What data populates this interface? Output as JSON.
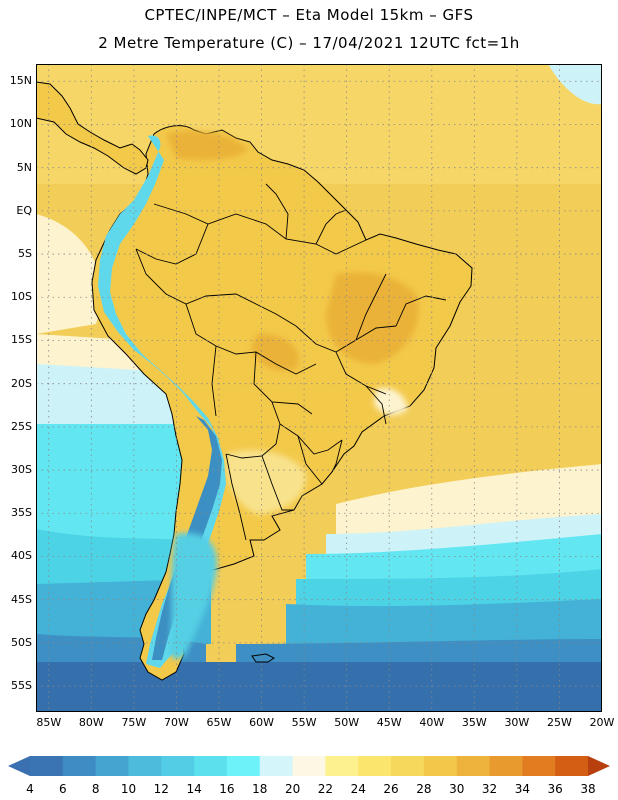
{
  "header": {
    "line1": "CPTEC/INPE/MCT –  Eta Model 15km – GFS",
    "line2": "2 Metre Temperature (C) – 17/04/2021 12UTC fct=1h"
  },
  "axes": {
    "lat_labels": [
      "15N",
      "10N",
      "5N",
      "EQ",
      "5S",
      "10S",
      "15S",
      "20S",
      "25S",
      "30S",
      "35S",
      "40S",
      "45S",
      "50S",
      "55S"
    ],
    "lat_values": [
      15,
      10,
      5,
      0,
      -5,
      -10,
      -15,
      -20,
      -25,
      -30,
      -35,
      -40,
      -45,
      -50,
      -55
    ],
    "lon_labels": [
      "85W",
      "80W",
      "75W",
      "70W",
      "65W",
      "60W",
      "55W",
      "50W",
      "45W",
      "40W",
      "35W",
      "30W",
      "25W",
      "20W"
    ],
    "lon_values": [
      -85,
      -80,
      -75,
      -70,
      -65,
      -60,
      -55,
      -50,
      -45,
      -40,
      -35,
      -30,
      -25,
      -20
    ],
    "lat_range": [
      -58,
      17
    ],
    "lon_range": [
      -86.5,
      -20
    ]
  },
  "colorbar": {
    "labels": [
      "4",
      "6",
      "8",
      "10",
      "12",
      "14",
      "16",
      "18",
      "20",
      "22",
      "24",
      "26",
      "28",
      "30",
      "32",
      "34",
      "36",
      "38"
    ],
    "low_color": "#3a6fb0",
    "high_color": "#b8400e",
    "colors": [
      "#3a74b3",
      "#3f8cc3",
      "#45a4d0",
      "#4cbbdc",
      "#53cde6",
      "#5ce0ee",
      "#6cf3fa",
      "#d4f6fb",
      "#fdf8e3",
      "#fdf18f",
      "#fbe56d",
      "#f6d85a",
      "#f2c84a",
      "#eeb33c",
      "#e99a2e",
      "#e17d20",
      "#d45f14",
      "#c2470c"
    ]
  },
  "map": {
    "ocean_colors": {
      "warm": "#f2cd58",
      "warm_light": "#f6da6e",
      "cream": "#fdf3cf",
      "pale": "#cdf3f8",
      "cyan": "#62e7f2",
      "cyan2": "#4dd3e6",
      "mid_blue": "#44b1d6",
      "blue": "#3d8fc4",
      "deep_blue": "#3570ad"
    },
    "land_colors": {
      "land": "#f3c94a",
      "land_hot": "#eab238",
      "land_light": "#f8e28c",
      "andes": "#5fd8ec",
      "andes_high": "#3c8fc2",
      "patagonia": "#55cfe4",
      "border": "#000000"
    }
  }
}
